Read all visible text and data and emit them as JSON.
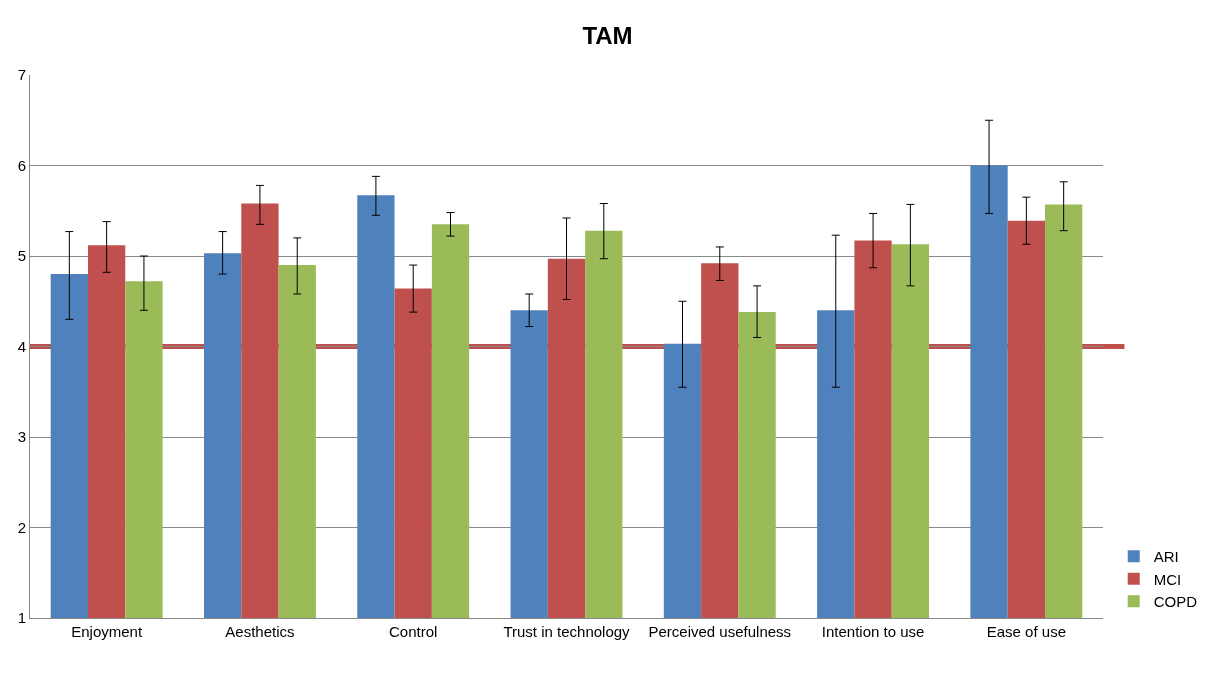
{
  "chart_data": {
    "type": "bar",
    "title": "TAM",
    "categories": [
      "Enjoyment",
      "Aesthetics",
      "Control",
      "Trust in technology",
      "Perceived usefulness",
      "Intention to use",
      "Ease of use"
    ],
    "series": [
      {
        "name": "ARI",
        "color": "#4f81bd",
        "values": [
          4.8,
          5.03,
          5.67,
          4.4,
          4.03,
          4.4,
          6.0
        ],
        "errors": [
          [
            4.3,
            5.27
          ],
          [
            4.8,
            5.27
          ],
          [
            5.45,
            5.88
          ],
          [
            4.22,
            4.58
          ],
          [
            3.55,
            4.5
          ],
          [
            3.55,
            5.23
          ],
          [
            5.47,
            6.5
          ]
        ]
      },
      {
        "name": "MCI",
        "color": "#c0504d",
        "values": [
          5.12,
          5.58,
          4.64,
          4.97,
          4.92,
          5.17,
          5.39
        ],
        "errors": [
          [
            4.82,
            5.38
          ],
          [
            5.35,
            5.78
          ],
          [
            4.38,
            4.9
          ],
          [
            4.52,
            5.42
          ],
          [
            4.73,
            5.1
          ],
          [
            4.87,
            5.47
          ],
          [
            5.13,
            5.65
          ]
        ]
      },
      {
        "name": "COPD",
        "color": "#9bbb59",
        "values": [
          4.72,
          4.9,
          5.35,
          5.28,
          4.38,
          5.13,
          5.57
        ],
        "errors": [
          [
            4.4,
            5.0
          ],
          [
            4.58,
            5.2
          ],
          [
            5.22,
            5.48
          ],
          [
            4.97,
            5.58
          ],
          [
            4.1,
            4.67
          ],
          [
            4.67,
            5.57
          ],
          [
            5.28,
            5.82
          ]
        ]
      }
    ],
    "ylim": [
      1,
      7
    ],
    "yticks": [
      1,
      2,
      3,
      4,
      5,
      6,
      7
    ],
    "grid": "y",
    "legend": "bottom right",
    "ref_lines": [
      {
        "axis": "y",
        "value": 4,
        "color": "#c0504d"
      }
    ]
  }
}
